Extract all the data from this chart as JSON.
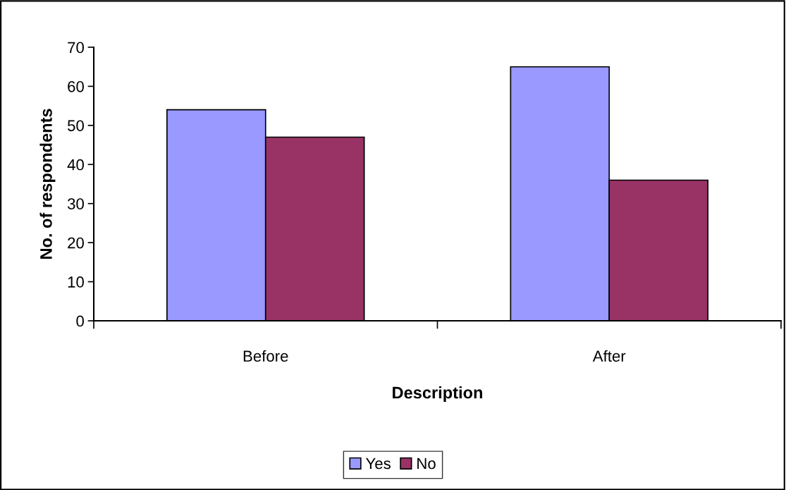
{
  "chart_data": {
    "type": "bar",
    "xlabel": "Description",
    "ylabel": "No. of respondents",
    "categories": [
      "Before",
      "After"
    ],
    "series": [
      {
        "name": "Yes",
        "color": "#9999ff",
        "values": [
          54,
          65
        ]
      },
      {
        "name": "No",
        "color": "#993366",
        "values": [
          47,
          36
        ]
      }
    ],
    "ylim": [
      0,
      70
    ],
    "yticks": [
      0,
      10,
      20,
      30,
      40,
      50,
      60,
      70
    ],
    "grid": false,
    "legend": "bottom"
  }
}
